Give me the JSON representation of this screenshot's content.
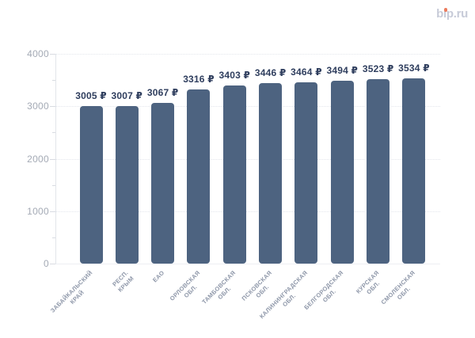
{
  "logo": {
    "text": "bip.ru",
    "color": "#c7cbd8",
    "dot_color": "#ec7b5d"
  },
  "chart_data": {
    "type": "bar",
    "title": "",
    "xlabel": "",
    "ylabel": "",
    "categories": [
      "ЗАБАЙКАЛЬСКИЙ\nКРАЙ",
      "РЕСП. КРЫМ",
      "ЕАО",
      "ОРЛОВСКАЯ\nОБЛ.",
      "ТАМБОВСКАЯ\nОБЛ.",
      "ПСКОВСКАЯ\nОБЛ.",
      "КАЛИНИНГРАДСКАЯ\nОБЛ.",
      "БЕЛГОРОДСКАЯ\nОБЛ.",
      "КУРСКАЯ ОБЛ.",
      "СМОЛЕНСКАЯ\nОБЛ."
    ],
    "values": [
      3005,
      3007,
      3067,
      3316,
      3403,
      3446,
      3464,
      3494,
      3523,
      3534
    ],
    "value_labels": [
      "3005 ₽",
      "3007 ₽",
      "3067 ₽",
      "3316 ₽",
      "3403 ₽",
      "3446 ₽",
      "3464 ₽",
      "3494 ₽",
      "3523 ₽",
      "3534 ₽"
    ],
    "ylim": [
      0,
      4000
    ],
    "yticks": [
      0,
      1000,
      2000,
      3000,
      4000
    ],
    "ytick_labels": [
      "0",
      "1000",
      "2000",
      "3000",
      "4000"
    ],
    "yticks_minor": [
      500,
      1500,
      2500,
      3500
    ],
    "grid": "horizontal-dotted",
    "legend": "none",
    "bar_color": "#4d6380",
    "value_label_color": "#2f3e5e",
    "ytick_label_color": "#a4aab5",
    "category_label_color": "#8d96a8"
  }
}
